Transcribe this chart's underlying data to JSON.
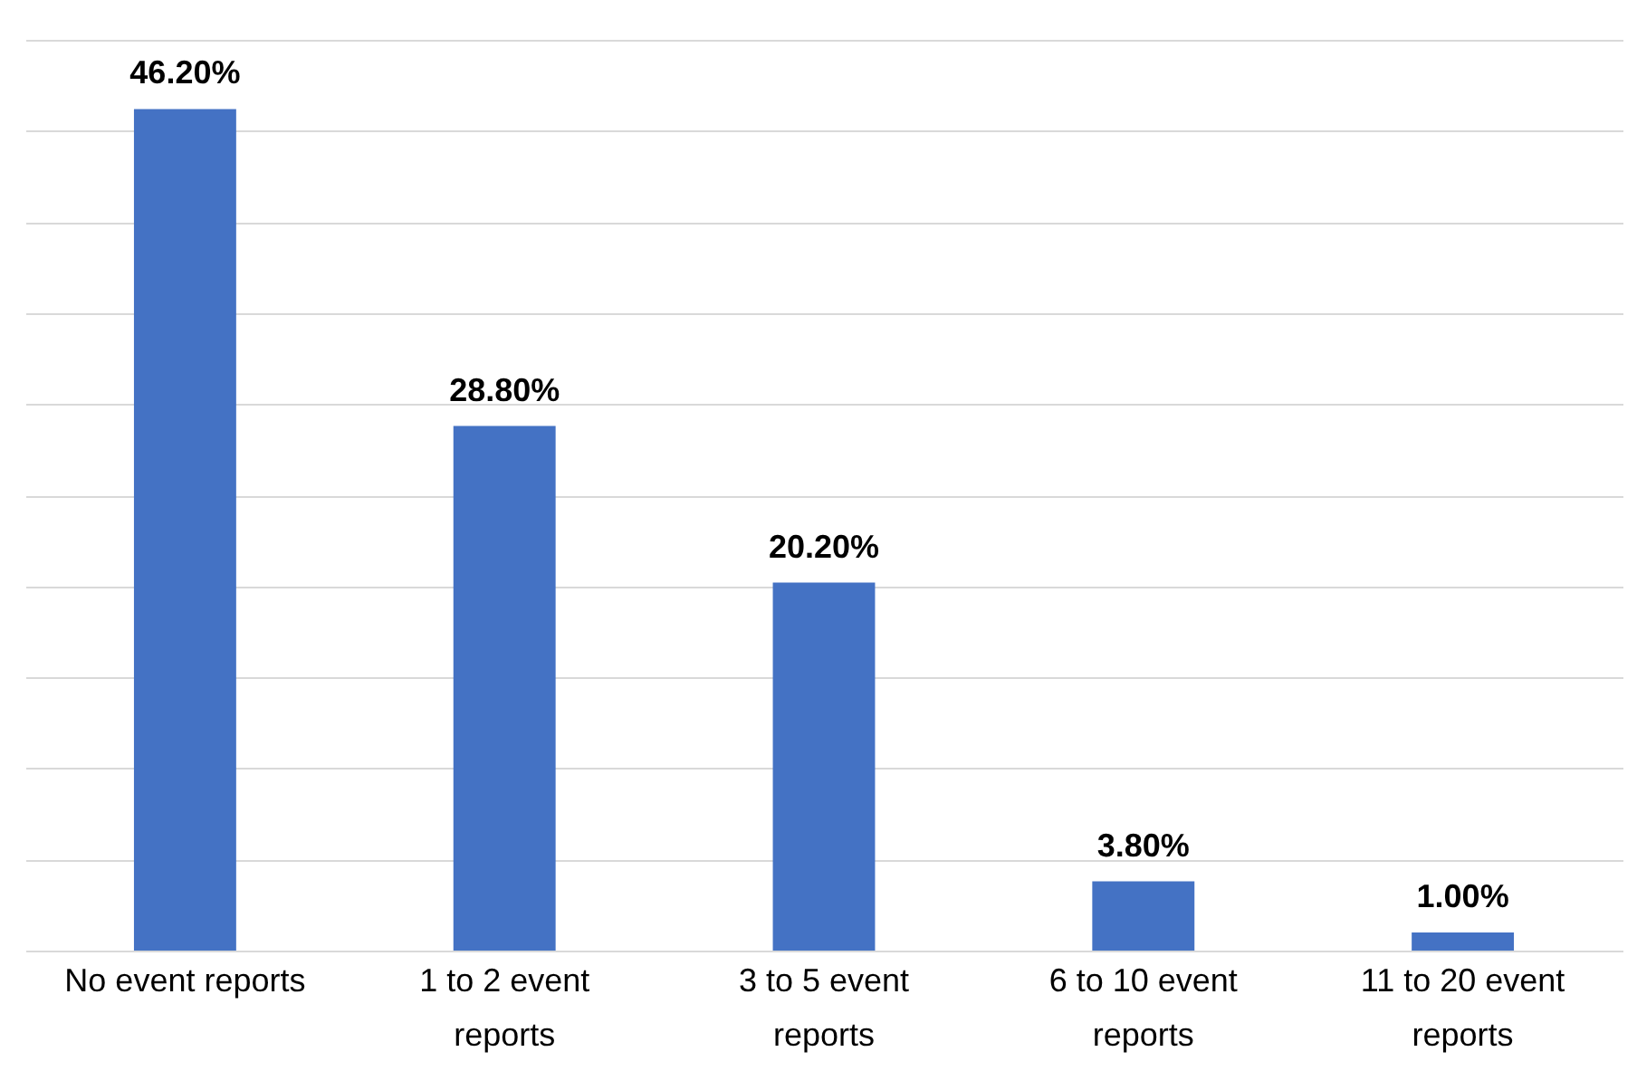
{
  "chart_data": {
    "type": "bar",
    "categories": [
      "No event reports",
      "1 to 2 event reports",
      "3 to 5 event reports",
      "6 to 10 event reports",
      "11 to 20 event reports"
    ],
    "values": [
      46.2,
      28.8,
      20.2,
      3.8,
      1.0
    ],
    "value_labels": [
      "46.20%",
      "28.80%",
      "20.20%",
      "3.80%",
      "1.00%"
    ],
    "color": "#4472c4",
    "ylim": [
      0,
      50
    ],
    "yticks": [
      {
        "value": 0,
        "label": null
      },
      {
        "value": 5,
        "label": null
      },
      {
        "value": 10,
        "label": null
      },
      {
        "value": 15,
        "label": null
      },
      {
        "value": 20,
        "label": null
      },
      {
        "value": 25,
        "label": null
      },
      {
        "value": 30,
        "label": null
      },
      {
        "value": 35,
        "label": null
      },
      {
        "value": 40,
        "label": null
      },
      {
        "value": 45,
        "label": null
      },
      {
        "value": 50,
        "label": null
      }
    ],
    "grid": "y",
    "tick_labels": "x"
  }
}
